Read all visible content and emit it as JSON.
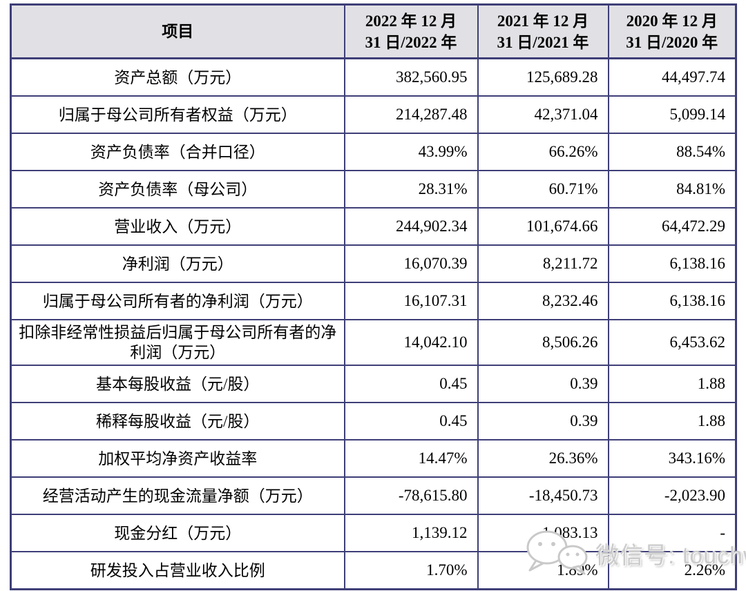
{
  "colors": {
    "border": "#3e3e78",
    "header_bg": "#e1e1e5",
    "watermark": "#cbcbcb",
    "text": "#000000",
    "page_bg": "#ffffff"
  },
  "table": {
    "header": {
      "item_label": "项目",
      "periods": [
        {
          "line1": "2022 年 12 月",
          "line2": "31 日/2022 年"
        },
        {
          "line1": "2021 年 12 月",
          "line2": "31 日/2021 年"
        },
        {
          "line1": "2020 年 12 月",
          "line2": "31 日/2020 年"
        }
      ]
    },
    "rows": [
      {
        "label": "资产总额（万元）",
        "values": [
          "382,560.95",
          "125,689.28",
          "44,497.74"
        ]
      },
      {
        "label": "归属于母公司所有者权益（万元）",
        "values": [
          "214,287.48",
          "42,371.04",
          "5,099.14"
        ]
      },
      {
        "label": "资产负债率（合并口径）",
        "values": [
          "43.99%",
          "66.26%",
          "88.54%"
        ]
      },
      {
        "label": "资产负债率（母公司）",
        "values": [
          "28.31%",
          "60.71%",
          "84.81%"
        ]
      },
      {
        "label": "营业收入（万元）",
        "values": [
          "244,902.34",
          "101,674.66",
          "64,472.29"
        ]
      },
      {
        "label": "净利润（万元）",
        "values": [
          "16,070.39",
          "8,211.72",
          "6,138.16"
        ]
      },
      {
        "label": "归属于母公司所有者的净利润（万元）",
        "values": [
          "16,107.31",
          "8,232.46",
          "6,138.16"
        ]
      },
      {
        "label": "扣除非经常性损益后归属于母公司所有者的净利润（万元）",
        "values": [
          "14,042.10",
          "8,506.26",
          "6,453.62"
        ]
      },
      {
        "label": "基本每股收益（元/股）",
        "values": [
          "0.45",
          "0.39",
          "1.88"
        ]
      },
      {
        "label": "稀释每股收益（元/股）",
        "values": [
          "0.45",
          "0.39",
          "1.88"
        ]
      },
      {
        "label": "加权平均净资产收益率",
        "values": [
          "14.47%",
          "26.36%",
          "343.16%"
        ]
      },
      {
        "label": "经营活动产生的现金流量净额（万元）",
        "values": [
          "-78,615.80",
          "-18,450.73",
          "-2,023.90"
        ]
      },
      {
        "label": "现金分红（万元）",
        "values": [
          "1,139.12",
          "1,083.13",
          "-"
        ]
      },
      {
        "label": "研发投入占营业收入比例",
        "values": [
          "1.70%",
          "1.89%",
          "2.26%"
        ]
      }
    ]
  },
  "watermark": {
    "text": "微信号: touchweb",
    "icon": "wechat-icon"
  }
}
